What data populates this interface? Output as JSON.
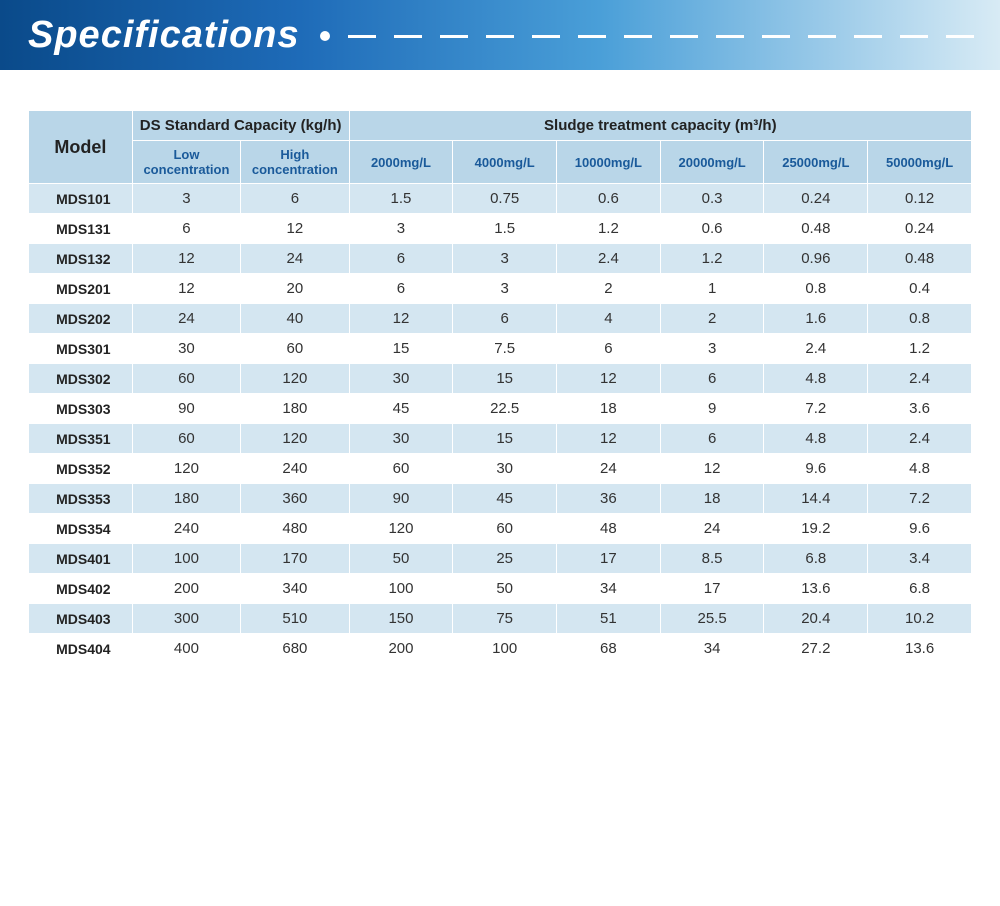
{
  "header": {
    "title": "Specifications"
  },
  "table": {
    "headers": {
      "model": "Model",
      "ds_group": "DS Standard Capacity (kg/h)",
      "sludge_group": "Sludge treatment capacity  (m³/h)",
      "ds_low": "Low concentration",
      "ds_high": "High concentration",
      "s1": "2000mg/L",
      "s2": "4000mg/L",
      "s3": "10000mg/L",
      "s4": "20000mg/L",
      "s5": "25000mg/L",
      "s6": "50000mg/L"
    },
    "rows": [
      {
        "model": "MDS101",
        "low": "3",
        "high": "6",
        "v": [
          "1.5",
          "0.75",
          "0.6",
          "0.3",
          "0.24",
          "0.12"
        ]
      },
      {
        "model": "MDS131",
        "low": "6",
        "high": "12",
        "v": [
          "3",
          "1.5",
          "1.2",
          "0.6",
          "0.48",
          "0.24"
        ]
      },
      {
        "model": "MDS132",
        "low": "12",
        "high": "24",
        "v": [
          "6",
          "3",
          "2.4",
          "1.2",
          "0.96",
          "0.48"
        ]
      },
      {
        "model": "MDS201",
        "low": "12",
        "high": "20",
        "v": [
          "6",
          "3",
          "2",
          "1",
          "0.8",
          "0.4"
        ]
      },
      {
        "model": "MDS202",
        "low": "24",
        "high": "40",
        "v": [
          "12",
          "6",
          "4",
          "2",
          "1.6",
          "0.8"
        ]
      },
      {
        "model": "MDS301",
        "low": "30",
        "high": "60",
        "v": [
          "15",
          "7.5",
          "6",
          "3",
          "2.4",
          "1.2"
        ]
      },
      {
        "model": "MDS302",
        "low": "60",
        "high": "120",
        "v": [
          "30",
          "15",
          "12",
          "6",
          "4.8",
          "2.4"
        ]
      },
      {
        "model": "MDS303",
        "low": "90",
        "high": "180",
        "v": [
          "45",
          "22.5",
          "18",
          "9",
          "7.2",
          "3.6"
        ]
      },
      {
        "model": "MDS351",
        "low": "60",
        "high": "120",
        "v": [
          "30",
          "15",
          "12",
          "6",
          "4.8",
          "2.4"
        ]
      },
      {
        "model": "MDS352",
        "low": "120",
        "high": "240",
        "v": [
          "60",
          "30",
          "24",
          "12",
          "9.6",
          "4.8"
        ]
      },
      {
        "model": "MDS353",
        "low": "180",
        "high": "360",
        "v": [
          "90",
          "45",
          "36",
          "18",
          "14.4",
          "7.2"
        ]
      },
      {
        "model": "MDS354",
        "low": "240",
        "high": "480",
        "v": [
          "120",
          "60",
          "48",
          "24",
          "19.2",
          "9.6"
        ]
      },
      {
        "model": "MDS401",
        "low": "100",
        "high": "170",
        "v": [
          "50",
          "25",
          "17",
          "8.5",
          "6.8",
          "3.4"
        ]
      },
      {
        "model": "MDS402",
        "low": "200",
        "high": "340",
        "v": [
          "100",
          "50",
          "34",
          "17",
          "13.6",
          "6.8"
        ]
      },
      {
        "model": "MDS403",
        "low": "300",
        "high": "510",
        "v": [
          "150",
          "75",
          "51",
          "25.5",
          "20.4",
          "10.2"
        ]
      },
      {
        "model": "MDS404",
        "low": "400",
        "high": "680",
        "v": [
          "200",
          "100",
          "68",
          "34",
          "27.2",
          "13.6"
        ]
      }
    ]
  },
  "style": {
    "banner_gradient": [
      "#0a4a8a",
      "#1e6bb8",
      "#4a9fd8",
      "#d8ebf5"
    ],
    "header_bg": "#b9d6e8",
    "row_odd_bg": "#d4e6f1",
    "row_even_bg": "#ffffff",
    "border_color": "#ffffff",
    "text_color": "#333333",
    "header_text_color": "#1a3a5a",
    "title_color": "#ffffff",
    "title_fontsize": 38,
    "cell_fontsize": 14
  }
}
